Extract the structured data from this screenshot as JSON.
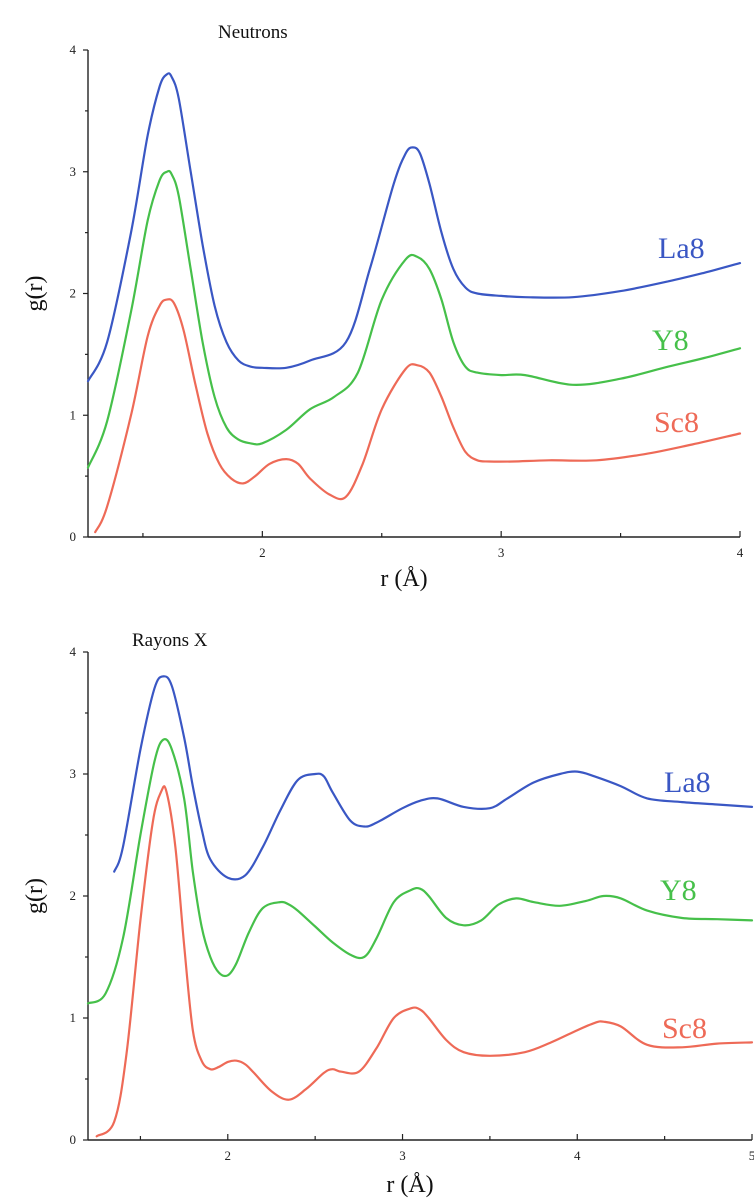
{
  "colors": {
    "La8": "#3a57c4",
    "Y8": "#46c04a",
    "Sc8": "#ee6a57"
  },
  "chart_data": [
    {
      "type": "line",
      "title": "Neutrons",
      "xlabel": "r (Å)",
      "ylabel": "g(r)",
      "xlim": [
        1.27,
        4.0
      ],
      "ylim": [
        0,
        4
      ],
      "xticks": [
        2,
        3,
        4
      ],
      "yticks": [
        0,
        1,
        2,
        3,
        4
      ],
      "series": [
        {
          "name": "La8",
          "color": "#3a57c4",
          "x": [
            1.27,
            1.35,
            1.45,
            1.52,
            1.57,
            1.6,
            1.62,
            1.65,
            1.7,
            1.75,
            1.8,
            1.85,
            1.9,
            1.95,
            2.0,
            2.1,
            2.2,
            2.35,
            2.45,
            2.55,
            2.6,
            2.63,
            2.66,
            2.7,
            2.75,
            2.8,
            2.85,
            2.9,
            3.0,
            3.1,
            3.3,
            3.5,
            3.7,
            3.85,
            4.0
          ],
          "y": [
            1.28,
            1.6,
            2.5,
            3.3,
            3.7,
            3.8,
            3.78,
            3.6,
            3.0,
            2.4,
            1.9,
            1.6,
            1.45,
            1.4,
            1.39,
            1.39,
            1.45,
            1.6,
            2.2,
            2.9,
            3.15,
            3.2,
            3.15,
            2.9,
            2.5,
            2.2,
            2.05,
            2.0,
            1.98,
            1.97,
            1.97,
            2.02,
            2.1,
            2.17,
            2.25
          ]
        },
        {
          "name": "Y8",
          "color": "#46c04a",
          "x": [
            1.27,
            1.35,
            1.45,
            1.52,
            1.57,
            1.6,
            1.62,
            1.65,
            1.7,
            1.75,
            1.8,
            1.85,
            1.9,
            1.95,
            2.0,
            2.1,
            2.2,
            2.3,
            2.4,
            2.5,
            2.6,
            2.65,
            2.7,
            2.75,
            2.8,
            2.85,
            2.9,
            3.0,
            3.1,
            3.3,
            3.5,
            3.7,
            3.85,
            4.0
          ],
          "y": [
            0.57,
            0.95,
            1.85,
            2.6,
            2.93,
            3.0,
            2.98,
            2.8,
            2.2,
            1.6,
            1.15,
            0.9,
            0.8,
            0.77,
            0.77,
            0.88,
            1.05,
            1.15,
            1.35,
            1.95,
            2.28,
            2.3,
            2.2,
            1.95,
            1.6,
            1.4,
            1.35,
            1.33,
            1.33,
            1.25,
            1.3,
            1.4,
            1.47,
            1.55
          ]
        },
        {
          "name": "Sc8",
          "color": "#ee6a57",
          "x": [
            1.3,
            1.35,
            1.45,
            1.52,
            1.57,
            1.6,
            1.63,
            1.67,
            1.72,
            1.77,
            1.82,
            1.87,
            1.92,
            1.97,
            2.03,
            2.1,
            2.15,
            2.2,
            2.28,
            2.35,
            2.42,
            2.5,
            2.6,
            2.65,
            2.7,
            2.75,
            2.8,
            2.85,
            2.9,
            2.95,
            3.05,
            3.2,
            3.4,
            3.6,
            3.8,
            4.0
          ],
          "y": [
            0.04,
            0.25,
            1.0,
            1.65,
            1.9,
            1.95,
            1.92,
            1.7,
            1.25,
            0.85,
            0.6,
            0.48,
            0.44,
            0.5,
            0.6,
            0.64,
            0.6,
            0.48,
            0.35,
            0.33,
            0.6,
            1.05,
            1.38,
            1.41,
            1.35,
            1.15,
            0.9,
            0.7,
            0.63,
            0.62,
            0.62,
            0.63,
            0.63,
            0.68,
            0.76,
            0.85
          ]
        }
      ]
    },
    {
      "type": "line",
      "title": "Rayons X",
      "xlabel": "r (Å)",
      "ylabel": "g(r)",
      "xlim": [
        1.2,
        5.0
      ],
      "ylim": [
        0,
        4
      ],
      "xticks": [
        2,
        3,
        4,
        5
      ],
      "yticks": [
        0,
        1,
        2,
        3,
        4
      ],
      "series": [
        {
          "name": "La8",
          "color": "#3a57c4",
          "x": [
            1.35,
            1.4,
            1.5,
            1.58,
            1.63,
            1.68,
            1.75,
            1.8,
            1.85,
            1.9,
            2.0,
            2.1,
            2.2,
            2.3,
            2.4,
            2.5,
            2.55,
            2.6,
            2.7,
            2.78,
            2.85,
            3.0,
            3.1,
            3.2,
            3.35,
            3.5,
            3.6,
            3.75,
            3.9,
            4.0,
            4.1,
            4.25,
            4.4,
            4.6,
            4.8,
            5.0
          ],
          "y": [
            2.2,
            2.4,
            3.2,
            3.7,
            3.8,
            3.72,
            3.3,
            2.9,
            2.55,
            2.3,
            2.15,
            2.17,
            2.4,
            2.7,
            2.95,
            3.0,
            2.98,
            2.85,
            2.62,
            2.57,
            2.6,
            2.72,
            2.78,
            2.8,
            2.73,
            2.72,
            2.8,
            2.93,
            3.0,
            3.02,
            2.98,
            2.9,
            2.8,
            2.77,
            2.75,
            2.73
          ]
        },
        {
          "name": "Y8",
          "color": "#46c04a",
          "x": [
            1.2,
            1.3,
            1.4,
            1.5,
            1.58,
            1.63,
            1.68,
            1.75,
            1.8,
            1.85,
            1.9,
            1.95,
            2.0,
            2.05,
            2.12,
            2.2,
            2.3,
            2.35,
            2.4,
            2.5,
            2.6,
            2.7,
            2.78,
            2.85,
            2.95,
            3.05,
            3.1,
            3.15,
            3.25,
            3.35,
            3.45,
            3.55,
            3.65,
            3.75,
            3.9,
            4.05,
            4.15,
            4.25,
            4.4,
            4.6,
            4.8,
            5.0
          ],
          "y": [
            1.12,
            1.2,
            1.65,
            2.5,
            3.1,
            3.28,
            3.2,
            2.8,
            2.2,
            1.75,
            1.5,
            1.37,
            1.35,
            1.45,
            1.7,
            1.9,
            1.95,
            1.93,
            1.88,
            1.75,
            1.62,
            1.52,
            1.5,
            1.65,
            1.95,
            2.05,
            2.06,
            2.0,
            1.82,
            1.76,
            1.8,
            1.93,
            1.98,
            1.95,
            1.92,
            1.96,
            2.0,
            1.98,
            1.88,
            1.82,
            1.81,
            1.8
          ]
        },
        {
          "name": "Sc8",
          "color": "#ee6a57",
          "x": [
            1.25,
            1.35,
            1.42,
            1.5,
            1.57,
            1.62,
            1.65,
            1.7,
            1.75,
            1.8,
            1.85,
            1.9,
            1.95,
            2.0,
            2.05,
            2.1,
            2.15,
            2.25,
            2.35,
            2.45,
            2.55,
            2.6,
            2.65,
            2.75,
            2.85,
            2.95,
            3.05,
            3.1,
            3.15,
            3.25,
            3.35,
            3.5,
            3.7,
            3.85,
            4.0,
            4.1,
            4.15,
            4.25,
            4.4,
            4.6,
            4.8,
            5.0
          ],
          "y": [
            0.03,
            0.15,
            0.7,
            1.8,
            2.6,
            2.86,
            2.85,
            2.4,
            1.6,
            0.9,
            0.65,
            0.58,
            0.6,
            0.64,
            0.65,
            0.62,
            0.55,
            0.4,
            0.33,
            0.42,
            0.55,
            0.58,
            0.56,
            0.56,
            0.75,
            1.0,
            1.08,
            1.07,
            1.0,
            0.82,
            0.72,
            0.69,
            0.72,
            0.8,
            0.9,
            0.96,
            0.97,
            0.93,
            0.78,
            0.76,
            0.79,
            0.8
          ]
        }
      ]
    }
  ]
}
